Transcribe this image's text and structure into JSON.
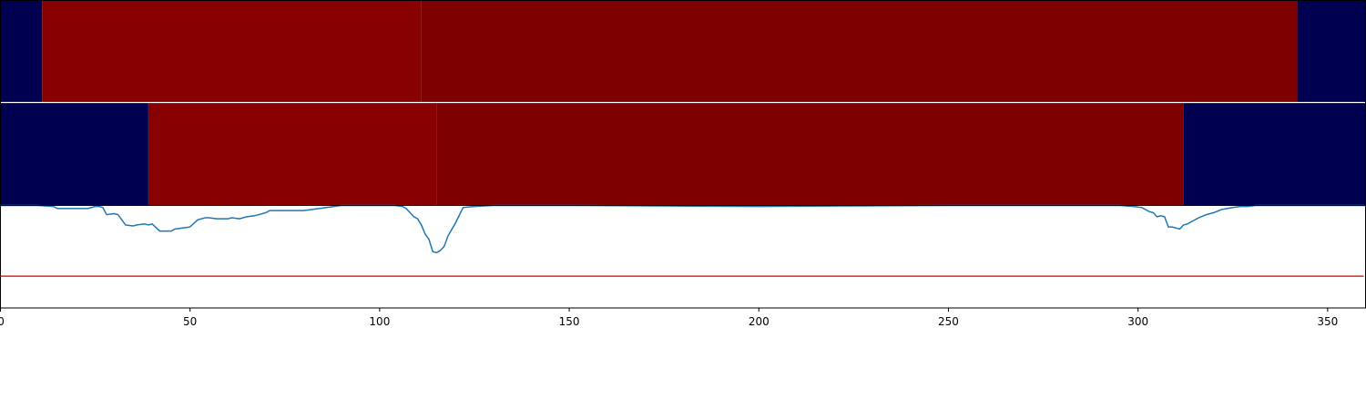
{
  "chart_data": {
    "type": "heatmap",
    "title": "",
    "xlabel": "",
    "ylabel": "",
    "xlim": [
      0,
      360
    ],
    "x_ticks": [
      0,
      50,
      100,
      150,
      200,
      250,
      300,
      350
    ],
    "x_tick_labels": [
      "0",
      "50",
      "100",
      "150",
      "200",
      "250",
      "300",
      "350"
    ],
    "colors": {
      "low": "#000050",
      "high_a": "#880000",
      "high_b": "#7f0000",
      "line": "#1f77b4",
      "threshold": "#d62728",
      "separator": "#ffffff"
    },
    "heatmap_rows": [
      {
        "segments": [
          {
            "x0": 0,
            "x1": 11,
            "level": "low"
          },
          {
            "x0": 11,
            "x1": 111,
            "level": "high_a"
          },
          {
            "x0": 111,
            "x1": 342,
            "level": "high_b"
          },
          {
            "x0": 342,
            "x1": 360,
            "level": "low"
          }
        ]
      },
      {
        "segments": [
          {
            "x0": 0,
            "x1": 39,
            "level": "low"
          },
          {
            "x0": 39,
            "x1": 115,
            "level": "high_a"
          },
          {
            "x0": 115,
            "x1": 312,
            "level": "high_b"
          },
          {
            "x0": 312,
            "x1": 360,
            "level": "low"
          }
        ]
      }
    ],
    "line_panel": {
      "ylim": [
        0,
        100
      ],
      "threshold": 31,
      "x": [
        0,
        5,
        10,
        14,
        15,
        17,
        20,
        22,
        23,
        25,
        26,
        27,
        28,
        30,
        31,
        33,
        35,
        36,
        38,
        39,
        40,
        42,
        45,
        46,
        48,
        50,
        52,
        54,
        55,
        57,
        60,
        61,
        63,
        65,
        67,
        70,
        71,
        80,
        90,
        100,
        104,
        106,
        107,
        108,
        109,
        110,
        111,
        112,
        113,
        114,
        115,
        116,
        117,
        118,
        120,
        122,
        125,
        130,
        150,
        200,
        250,
        280,
        295,
        299,
        301,
        303,
        304,
        305,
        306,
        307,
        308,
        309,
        310,
        311,
        312,
        313,
        314,
        316,
        318,
        320,
        322,
        325,
        327,
        329,
        331,
        340,
        360
      ],
      "y": [
        100,
        100,
        100,
        99,
        97,
        97,
        97,
        97,
        97,
        99,
        99,
        98,
        91,
        92,
        91,
        81,
        80,
        81,
        82,
        81,
        82,
        75,
        75,
        77,
        78,
        79,
        86,
        88,
        88,
        87,
        87,
        88,
        87,
        89,
        90,
        93,
        95,
        95,
        100,
        100,
        100,
        99,
        97,
        93,
        89,
        87,
        81,
        72,
        67,
        55,
        54,
        56,
        60,
        70,
        83,
        98,
        99,
        100,
        100,
        99,
        100,
        100,
        100,
        99,
        98,
        94,
        93,
        89,
        90,
        89,
        79,
        79,
        78,
        77,
        81,
        82,
        84,
        88,
        91,
        93,
        96,
        98,
        99,
        99,
        100,
        100,
        100
      ]
    }
  }
}
